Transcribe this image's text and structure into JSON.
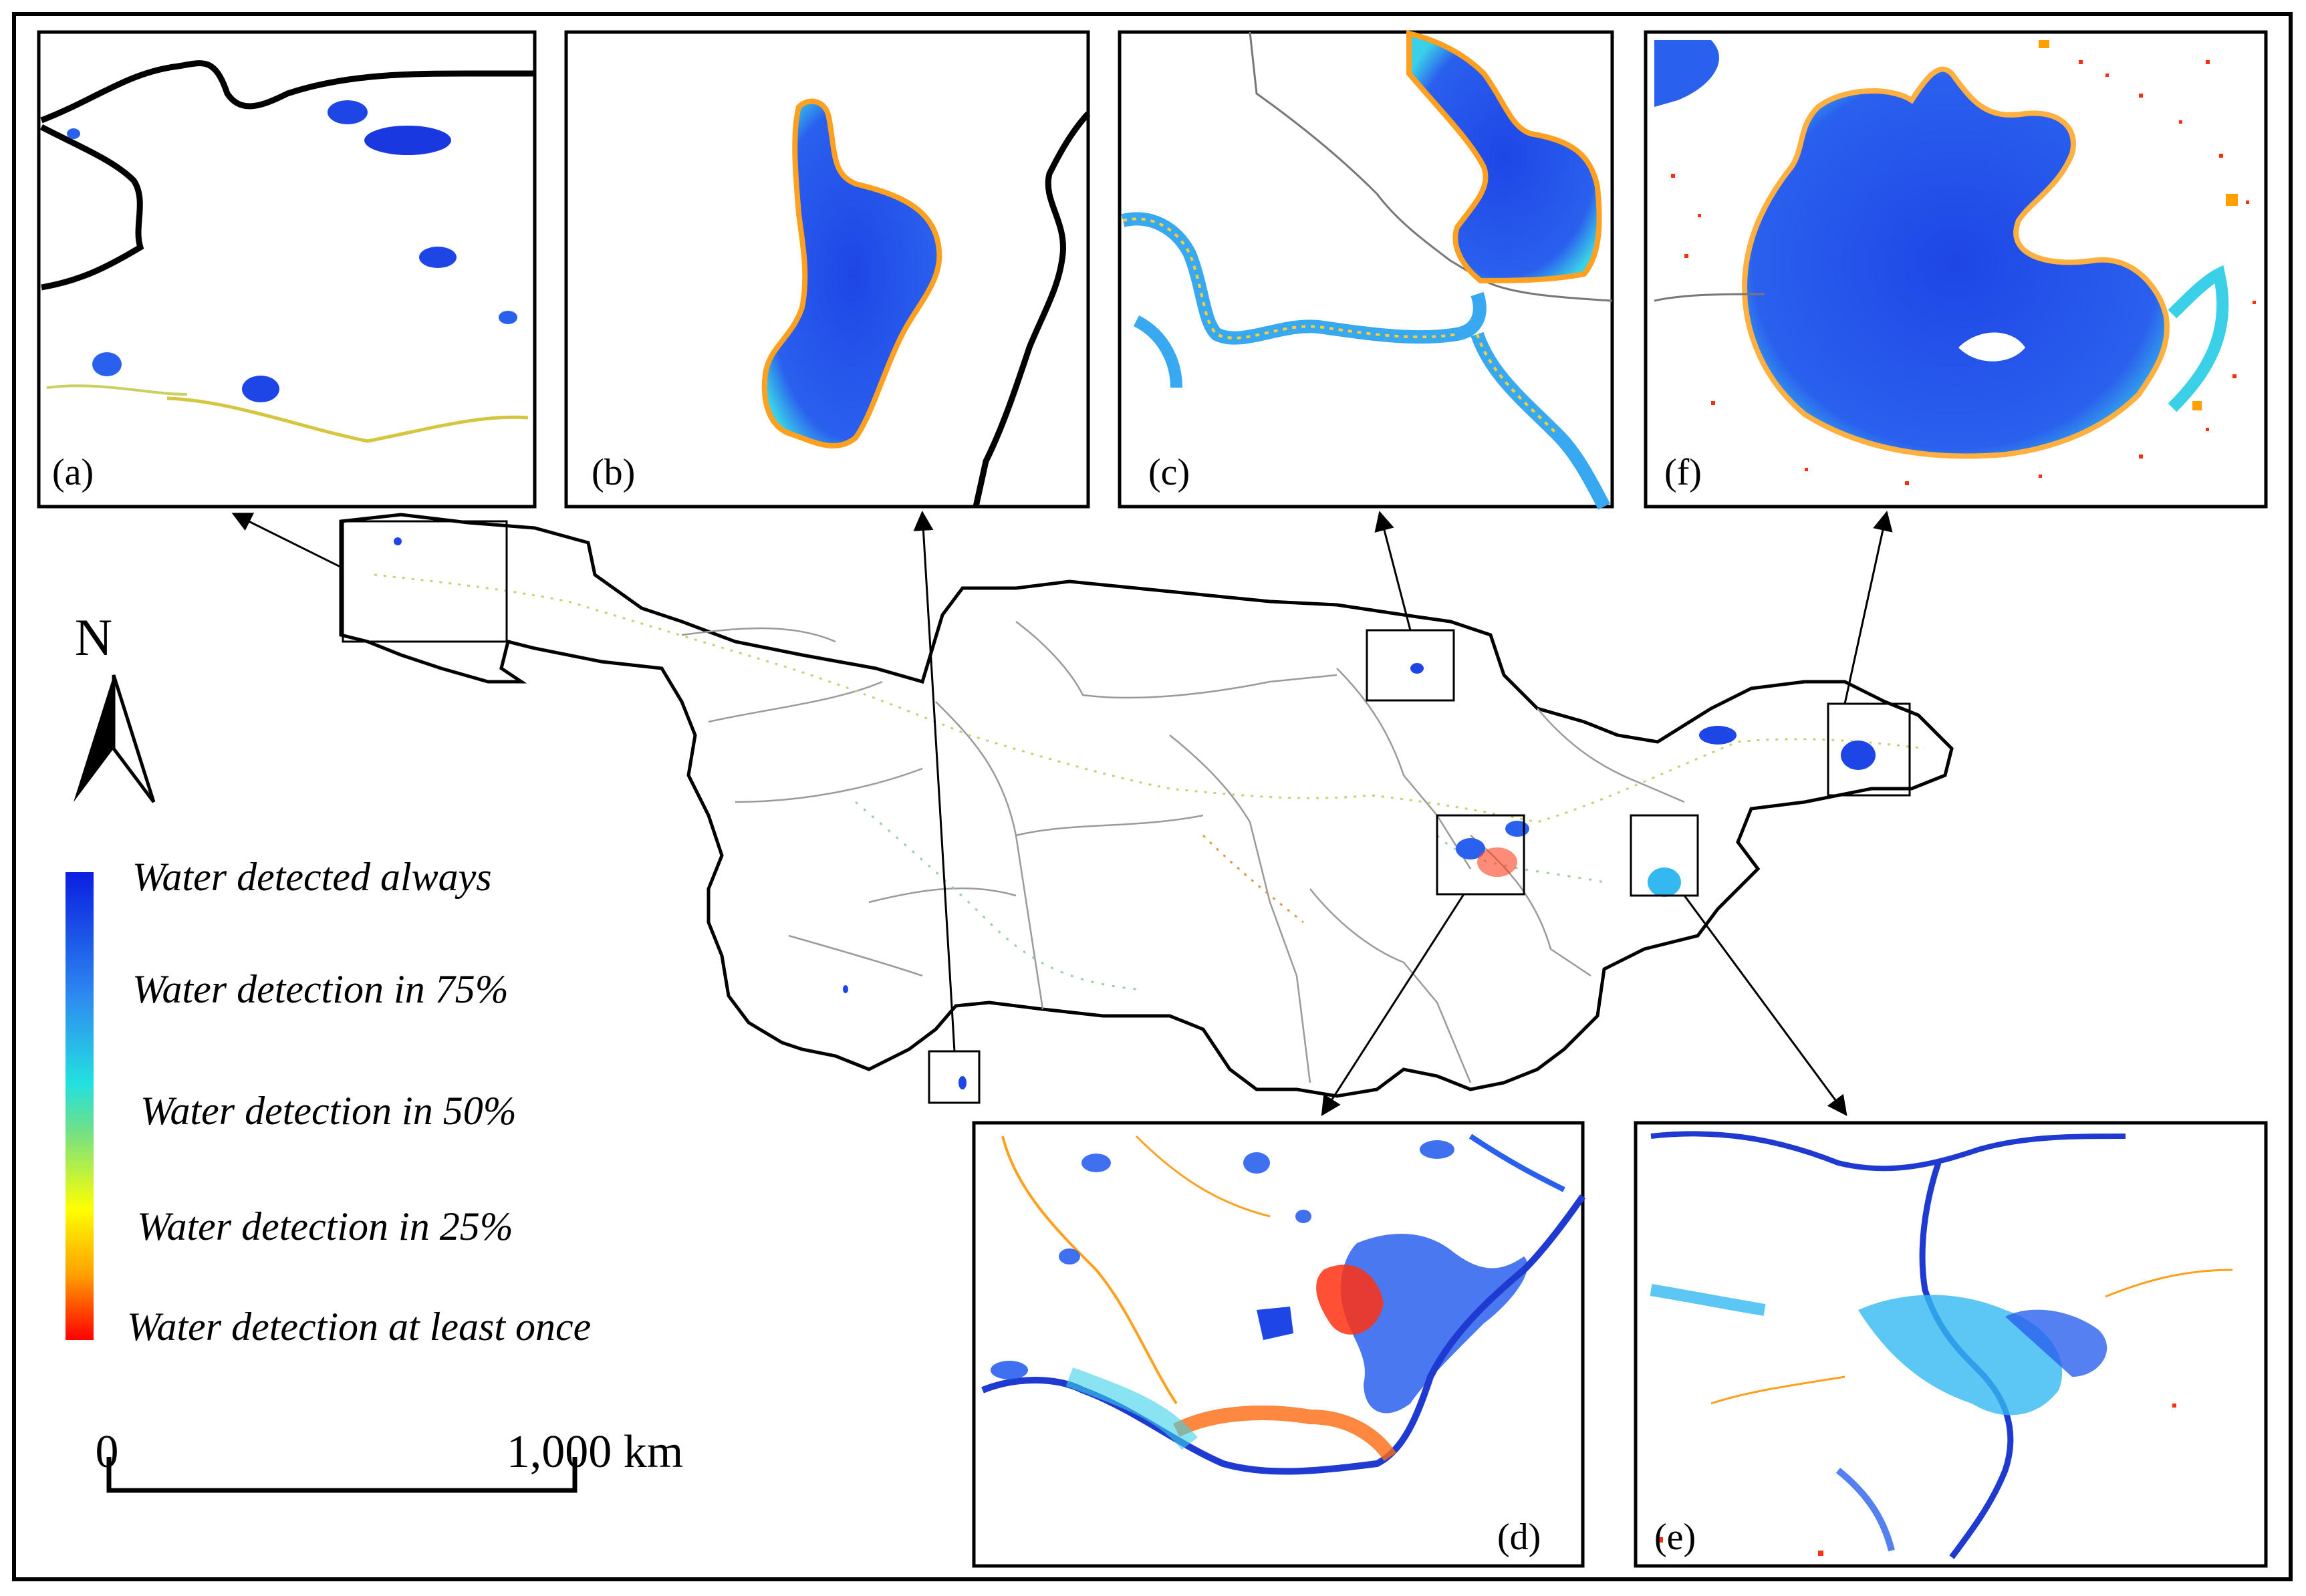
{
  "north_label": "N",
  "legend": {
    "items": [
      {
        "label": "Water detected always",
        "color": "#0a1ee0"
      },
      {
        "label": "Water detection in 75%",
        "color": "#33b9f0"
      },
      {
        "label": "Water detection in 50%",
        "color": "#6ee08a"
      },
      {
        "label": "Water detection in 25%",
        "color": "#ffb000"
      },
      {
        "label": "Water detection at least once",
        "color": "#ff1010"
      }
    ]
  },
  "scale_bar": {
    "start_label": "0",
    "end_label": "1,000 km"
  },
  "panels": {
    "a": "(a)",
    "b": "(b)",
    "c": "(c)",
    "d": "(d)",
    "e": "(e)",
    "f": "(f)"
  }
}
